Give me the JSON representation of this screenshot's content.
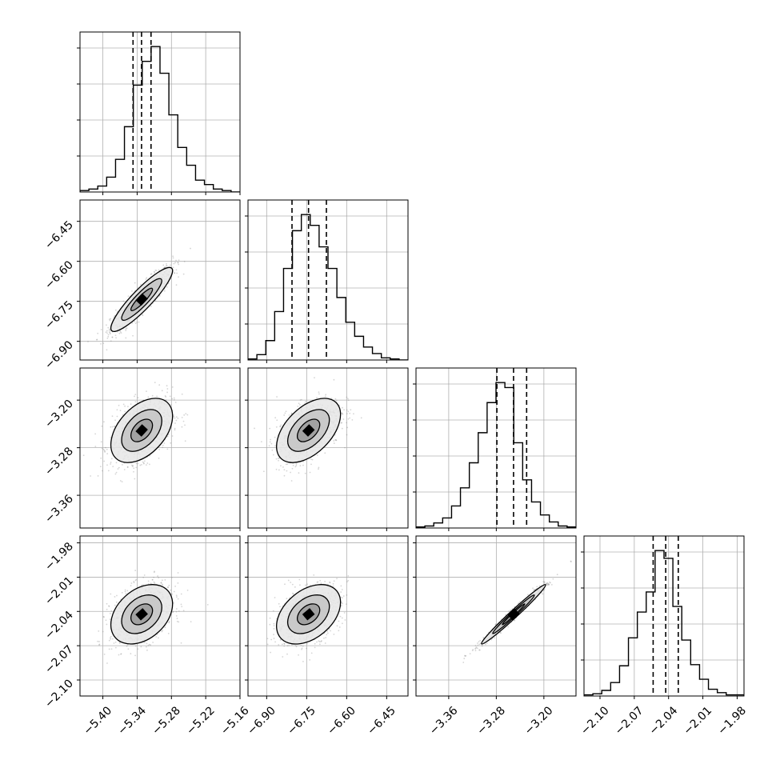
{
  "colors": {
    "frame": "#000000",
    "grid": "#b0b0b0",
    "background": "#ffffff",
    "points": "#888888"
  },
  "chart_data": {
    "type": "corner",
    "grid": true,
    "parameters": [
      {
        "range": [
          -5.44,
          -5.16
        ],
        "ticks": [
          -5.4,
          -5.34,
          -5.28,
          -5.22,
          -5.16
        ],
        "tick_labels": [
          "−5.40",
          "−5.34",
          "−5.28",
          "−5.22",
          "−5.16"
        ],
        "quantiles": [
          -5.3472,
          -5.3323,
          -5.3157
        ],
        "hist": [
          1,
          2,
          4,
          10,
          22,
          44,
          72,
          88,
          98,
          80,
          52,
          30,
          18,
          8,
          5,
          2,
          1,
          0
        ]
      },
      {
        "range": [
          -6.97,
          -6.37
        ],
        "ticks": [
          -6.9,
          -6.75,
          -6.6,
          -6.45
        ],
        "tick_labels": [
          "−6.90",
          "−6.75",
          "−6.60",
          "−6.45"
        ],
        "quantiles": [
          -6.805,
          -6.743,
          -6.676
        ],
        "hist": [
          1,
          5,
          18,
          45,
          85,
          120,
          135,
          125,
          105,
          85,
          58,
          35,
          22,
          12,
          6,
          2,
          1,
          0
        ]
      },
      {
        "range": [
          -3.415,
          -3.146
        ],
        "ticks": [
          -3.36,
          -3.28,
          -3.2
        ],
        "tick_labels": [
          "−3.36",
          "−3.28",
          "−3.20"
        ],
        "quantiles": [
          -3.279,
          -3.251,
          -3.229
        ],
        "hist": [
          1,
          2,
          5,
          10,
          22,
          40,
          65,
          95,
          125,
          145,
          140,
          85,
          48,
          26,
          13,
          6,
          2,
          1
        ]
      },
      {
        "range": [
          -2.114,
          -1.974
        ],
        "ticks": [
          -2.1,
          -2.07,
          -2.04,
          -2.01,
          -1.98
        ],
        "tick_labels": [
          "−2.10",
          "−2.07",
          "−2.04",
          "−2.01",
          "−1.98"
        ],
        "quantiles": [
          -2.0535,
          -2.0425,
          -2.0315
        ],
        "hist": [
          1,
          2,
          5,
          12,
          27,
          52,
          75,
          93,
          130,
          123,
          80,
          50,
          28,
          15,
          6,
          3,
          1,
          1
        ]
      }
    ],
    "pairs": [
      {
        "x": 0,
        "y": 1,
        "center": [
          -5.332,
          -6.743
        ],
        "sd": [
          0.027,
          0.06
        ],
        "rho": 0.9
      },
      {
        "x": 0,
        "y": 2,
        "center": [
          -5.332,
          -3.251
        ],
        "sd": [
          0.027,
          0.027
        ],
        "rho": 0.45
      },
      {
        "x": 1,
        "y": 2,
        "center": [
          -6.743,
          -3.251
        ],
        "sd": [
          0.06,
          0.027
        ],
        "rho": 0.5
      },
      {
        "x": 0,
        "y": 3,
        "center": [
          -5.332,
          -2.0425
        ],
        "sd": [
          0.027,
          0.013
        ],
        "rho": 0.35
      },
      {
        "x": 1,
        "y": 3,
        "center": [
          -6.743,
          -2.0425
        ],
        "sd": [
          0.06,
          0.013
        ],
        "rho": 0.4
      },
      {
        "x": 2,
        "y": 3,
        "center": [
          -3.251,
          -2.0425
        ],
        "sd": [
          0.027,
          0.013
        ],
        "rho": 0.985
      }
    ]
  }
}
